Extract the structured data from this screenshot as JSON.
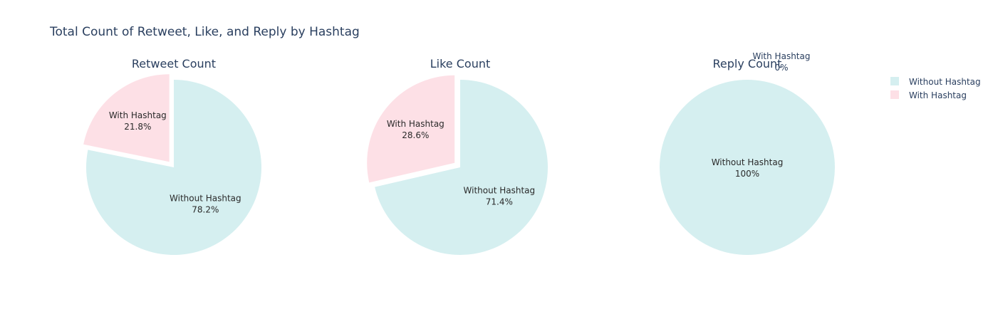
{
  "chart_data": {
    "type": "pie",
    "title": "Total Count of Retweet, Like, and Reply by Hashtag",
    "legend": {
      "position": "top-right",
      "items": [
        {
          "label": "Without Hashtag",
          "color": "#d5eff0"
        },
        {
          "label": "With Hashtag",
          "color": "#fde0e6"
        }
      ]
    },
    "pies": [
      {
        "title": "Retweet Count",
        "slices": [
          {
            "label": "Without Hashtag",
            "percent": 78.2,
            "text": "78.2%",
            "color": "#d5eff0",
            "pulled": false
          },
          {
            "label": "With Hashtag",
            "percent": 21.8,
            "text": "21.8%",
            "color": "#fde0e6",
            "pulled": true
          }
        ]
      },
      {
        "title": "Like Count",
        "slices": [
          {
            "label": "Without Hashtag",
            "percent": 71.4,
            "text": "71.4%",
            "color": "#d5eff0",
            "pulled": false
          },
          {
            "label": "With Hashtag",
            "percent": 28.6,
            "text": "28.6%",
            "color": "#fde0e6",
            "pulled": true
          }
        ]
      },
      {
        "title": "Reply Count",
        "slices": [
          {
            "label": "Without Hashtag",
            "percent": 100,
            "text": "100%",
            "color": "#d5eff0",
            "pulled": false
          },
          {
            "label": "With Hashtag",
            "percent": 0,
            "text": "0%",
            "color": "#fde0e6",
            "pulled": true
          }
        ]
      }
    ]
  }
}
